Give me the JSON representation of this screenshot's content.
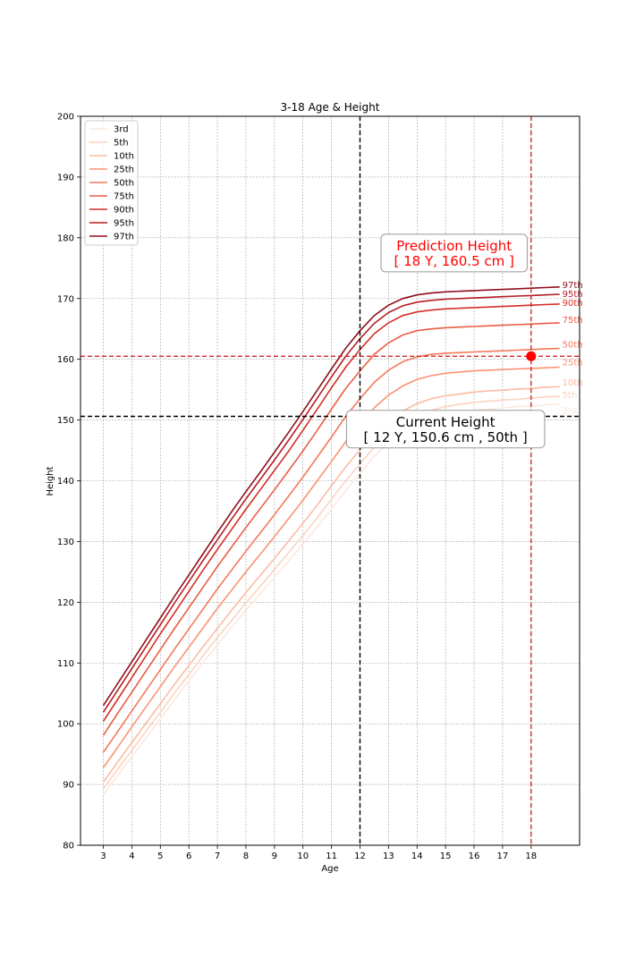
{
  "chart_data": {
    "type": "line",
    "title": "3-18 Age & Height",
    "xlabel": "Age",
    "ylabel": "Height",
    "xlim": [
      2.2,
      19.7
    ],
    "ylim": [
      80,
      200
    ],
    "xticks": [
      3,
      4,
      5,
      6,
      7,
      8,
      9,
      10,
      11,
      12,
      13,
      14,
      15,
      16,
      17,
      18
    ],
    "yticks": [
      80,
      90,
      100,
      110,
      120,
      130,
      140,
      150,
      160,
      170,
      180,
      190,
      200
    ],
    "grid": true,
    "legend_position": "top-left",
    "x": [
      3,
      3.5,
      4,
      4.5,
      5,
      5.5,
      6,
      6.5,
      7,
      7.5,
      8,
      8.5,
      9,
      9.5,
      10,
      10.5,
      11,
      11.5,
      12,
      12.5,
      13,
      13.5,
      14,
      14.5,
      15,
      15.5,
      16,
      16.5,
      17,
      17.5,
      18,
      18.5,
      19
    ],
    "series": [
      {
        "name": "3rd",
        "color": "#fce8df",
        "end_label": "3rd",
        "values": [
          88.4,
          91.5,
          94.6,
          97.7,
          100.9,
          104.0,
          107.1,
          110.1,
          113.0,
          115.9,
          118.7,
          121.4,
          124.1,
          126.8,
          129.6,
          132.4,
          135.4,
          138.4,
          141.2,
          144.0,
          146.2,
          148.0,
          149.4,
          150.3,
          150.9,
          151.3,
          151.6,
          151.8,
          152.0,
          152.2,
          152.3,
          152.5,
          152.6
        ]
      },
      {
        "name": "5th",
        "color": "#fcd3c1",
        "end_label": "5th",
        "values": [
          89.3,
          92.5,
          95.6,
          98.8,
          101.9,
          105.1,
          108.1,
          111.2,
          114.2,
          117.0,
          119.9,
          122.6,
          125.4,
          128.2,
          131.0,
          133.9,
          137.0,
          140.0,
          142.8,
          145.5,
          147.7,
          149.4,
          150.7,
          151.6,
          152.2,
          152.6,
          152.9,
          153.1,
          153.3,
          153.4,
          153.6,
          153.8,
          153.9
        ]
      },
      {
        "name": "10th",
        "color": "#fcbba1",
        "end_label": "10th",
        "values": [
          90.4,
          93.7,
          96.9,
          100.1,
          103.3,
          106.5,
          109.6,
          112.7,
          115.7,
          118.7,
          121.6,
          124.4,
          127.2,
          130.1,
          133.0,
          136.0,
          139.2,
          142.3,
          145.1,
          147.8,
          149.9,
          151.5,
          152.7,
          153.5,
          154.0,
          154.3,
          154.6,
          154.8,
          154.9,
          155.1,
          155.2,
          155.4,
          155.5
        ]
      },
      {
        "name": "25th",
        "color": "#fc9272",
        "end_label": "25th",
        "values": [
          92.8,
          96.1,
          99.5,
          102.8,
          106.1,
          109.4,
          112.6,
          115.8,
          119.0,
          122.0,
          125.0,
          127.9,
          130.8,
          133.8,
          136.8,
          140.0,
          143.2,
          146.4,
          149.3,
          152.0,
          154.1,
          155.6,
          156.7,
          157.3,
          157.7,
          157.9,
          158.1,
          158.2,
          158.3,
          158.4,
          158.5,
          158.6,
          158.7
        ]
      },
      {
        "name": "50th",
        "color": "#f4795a",
        "end_label": "50th",
        "values": [
          95.3,
          98.7,
          102.1,
          105.5,
          108.9,
          112.3,
          115.6,
          118.9,
          122.2,
          125.3,
          128.4,
          131.4,
          134.4,
          137.5,
          140.6,
          143.9,
          147.2,
          150.6,
          153.5,
          156.2,
          158.2,
          159.6,
          160.4,
          160.8,
          161.0,
          161.1,
          161.2,
          161.3,
          161.4,
          161.5,
          161.6,
          161.7,
          161.8
        ]
      },
      {
        "name": "75th",
        "color": "#ea5c44",
        "end_label": "75th",
        "values": [
          98.1,
          101.7,
          105.2,
          108.7,
          112.2,
          115.7,
          119.1,
          122.5,
          125.9,
          129.1,
          132.3,
          135.4,
          138.5,
          141.7,
          144.9,
          148.3,
          151.8,
          155.2,
          158.1,
          160.8,
          162.7,
          164.0,
          164.7,
          165.0,
          165.2,
          165.3,
          165.4,
          165.5,
          165.6,
          165.7,
          165.8,
          165.9,
          166.0
        ]
      },
      {
        "name": "90th",
        "color": "#d42d25",
        "end_label": "90th",
        "values": [
          100.4,
          104.0,
          107.6,
          111.2,
          114.8,
          118.3,
          121.8,
          125.3,
          128.7,
          132.0,
          135.3,
          138.5,
          141.7,
          144.9,
          148.3,
          151.8,
          155.3,
          158.7,
          161.6,
          164.2,
          166.0,
          167.2,
          167.8,
          168.1,
          168.3,
          168.4,
          168.5,
          168.6,
          168.7,
          168.8,
          168.9,
          169.0,
          169.1
        ]
      },
      {
        "name": "95th",
        "color": "#b41e22",
        "end_label": "95th",
        "values": [
          101.9,
          105.5,
          109.1,
          112.7,
          116.3,
          119.9,
          123.4,
          126.9,
          130.3,
          133.7,
          137.0,
          140.2,
          143.4,
          146.7,
          150.1,
          153.6,
          157.1,
          160.5,
          163.4,
          165.9,
          167.7,
          168.8,
          169.4,
          169.7,
          169.9,
          170.0,
          170.1,
          170.2,
          170.3,
          170.4,
          170.5,
          170.6,
          170.7
        ]
      },
      {
        "name": "97th",
        "color": "#8f0e1c",
        "end_label": "97th",
        "values": [
          103.0,
          106.6,
          110.2,
          113.8,
          117.4,
          121.0,
          124.5,
          128.0,
          131.5,
          134.9,
          138.2,
          141.4,
          144.7,
          148.0,
          151.4,
          154.9,
          158.4,
          161.8,
          164.7,
          167.2,
          168.9,
          170.0,
          170.6,
          170.9,
          171.1,
          171.2,
          171.3,
          171.4,
          171.5,
          171.6,
          171.7,
          171.8,
          171.9
        ]
      }
    ],
    "markers": [
      {
        "name": "current",
        "x": 12,
        "y": 150.6,
        "color": "#000000",
        "line_color": "#000000"
      },
      {
        "name": "prediction",
        "x": 18,
        "y": 160.5,
        "color": "#ff0000",
        "line_color": "#d62728"
      }
    ],
    "annotations": [
      {
        "name": "current-height-annotation",
        "lines": [
          "Current Height",
          "[ 12 Y, 150.6 cm , 50th ]"
        ],
        "color": "#000000",
        "anchor_x": 15.0,
        "anchor_y": 148.5
      },
      {
        "name": "prediction-height-annotation",
        "lines": [
          "Prediction Height",
          "[ 18 Y, 160.5 cm ]"
        ],
        "color": "#ff0000",
        "anchor_x": 15.3,
        "anchor_y": 177.5
      }
    ]
  }
}
